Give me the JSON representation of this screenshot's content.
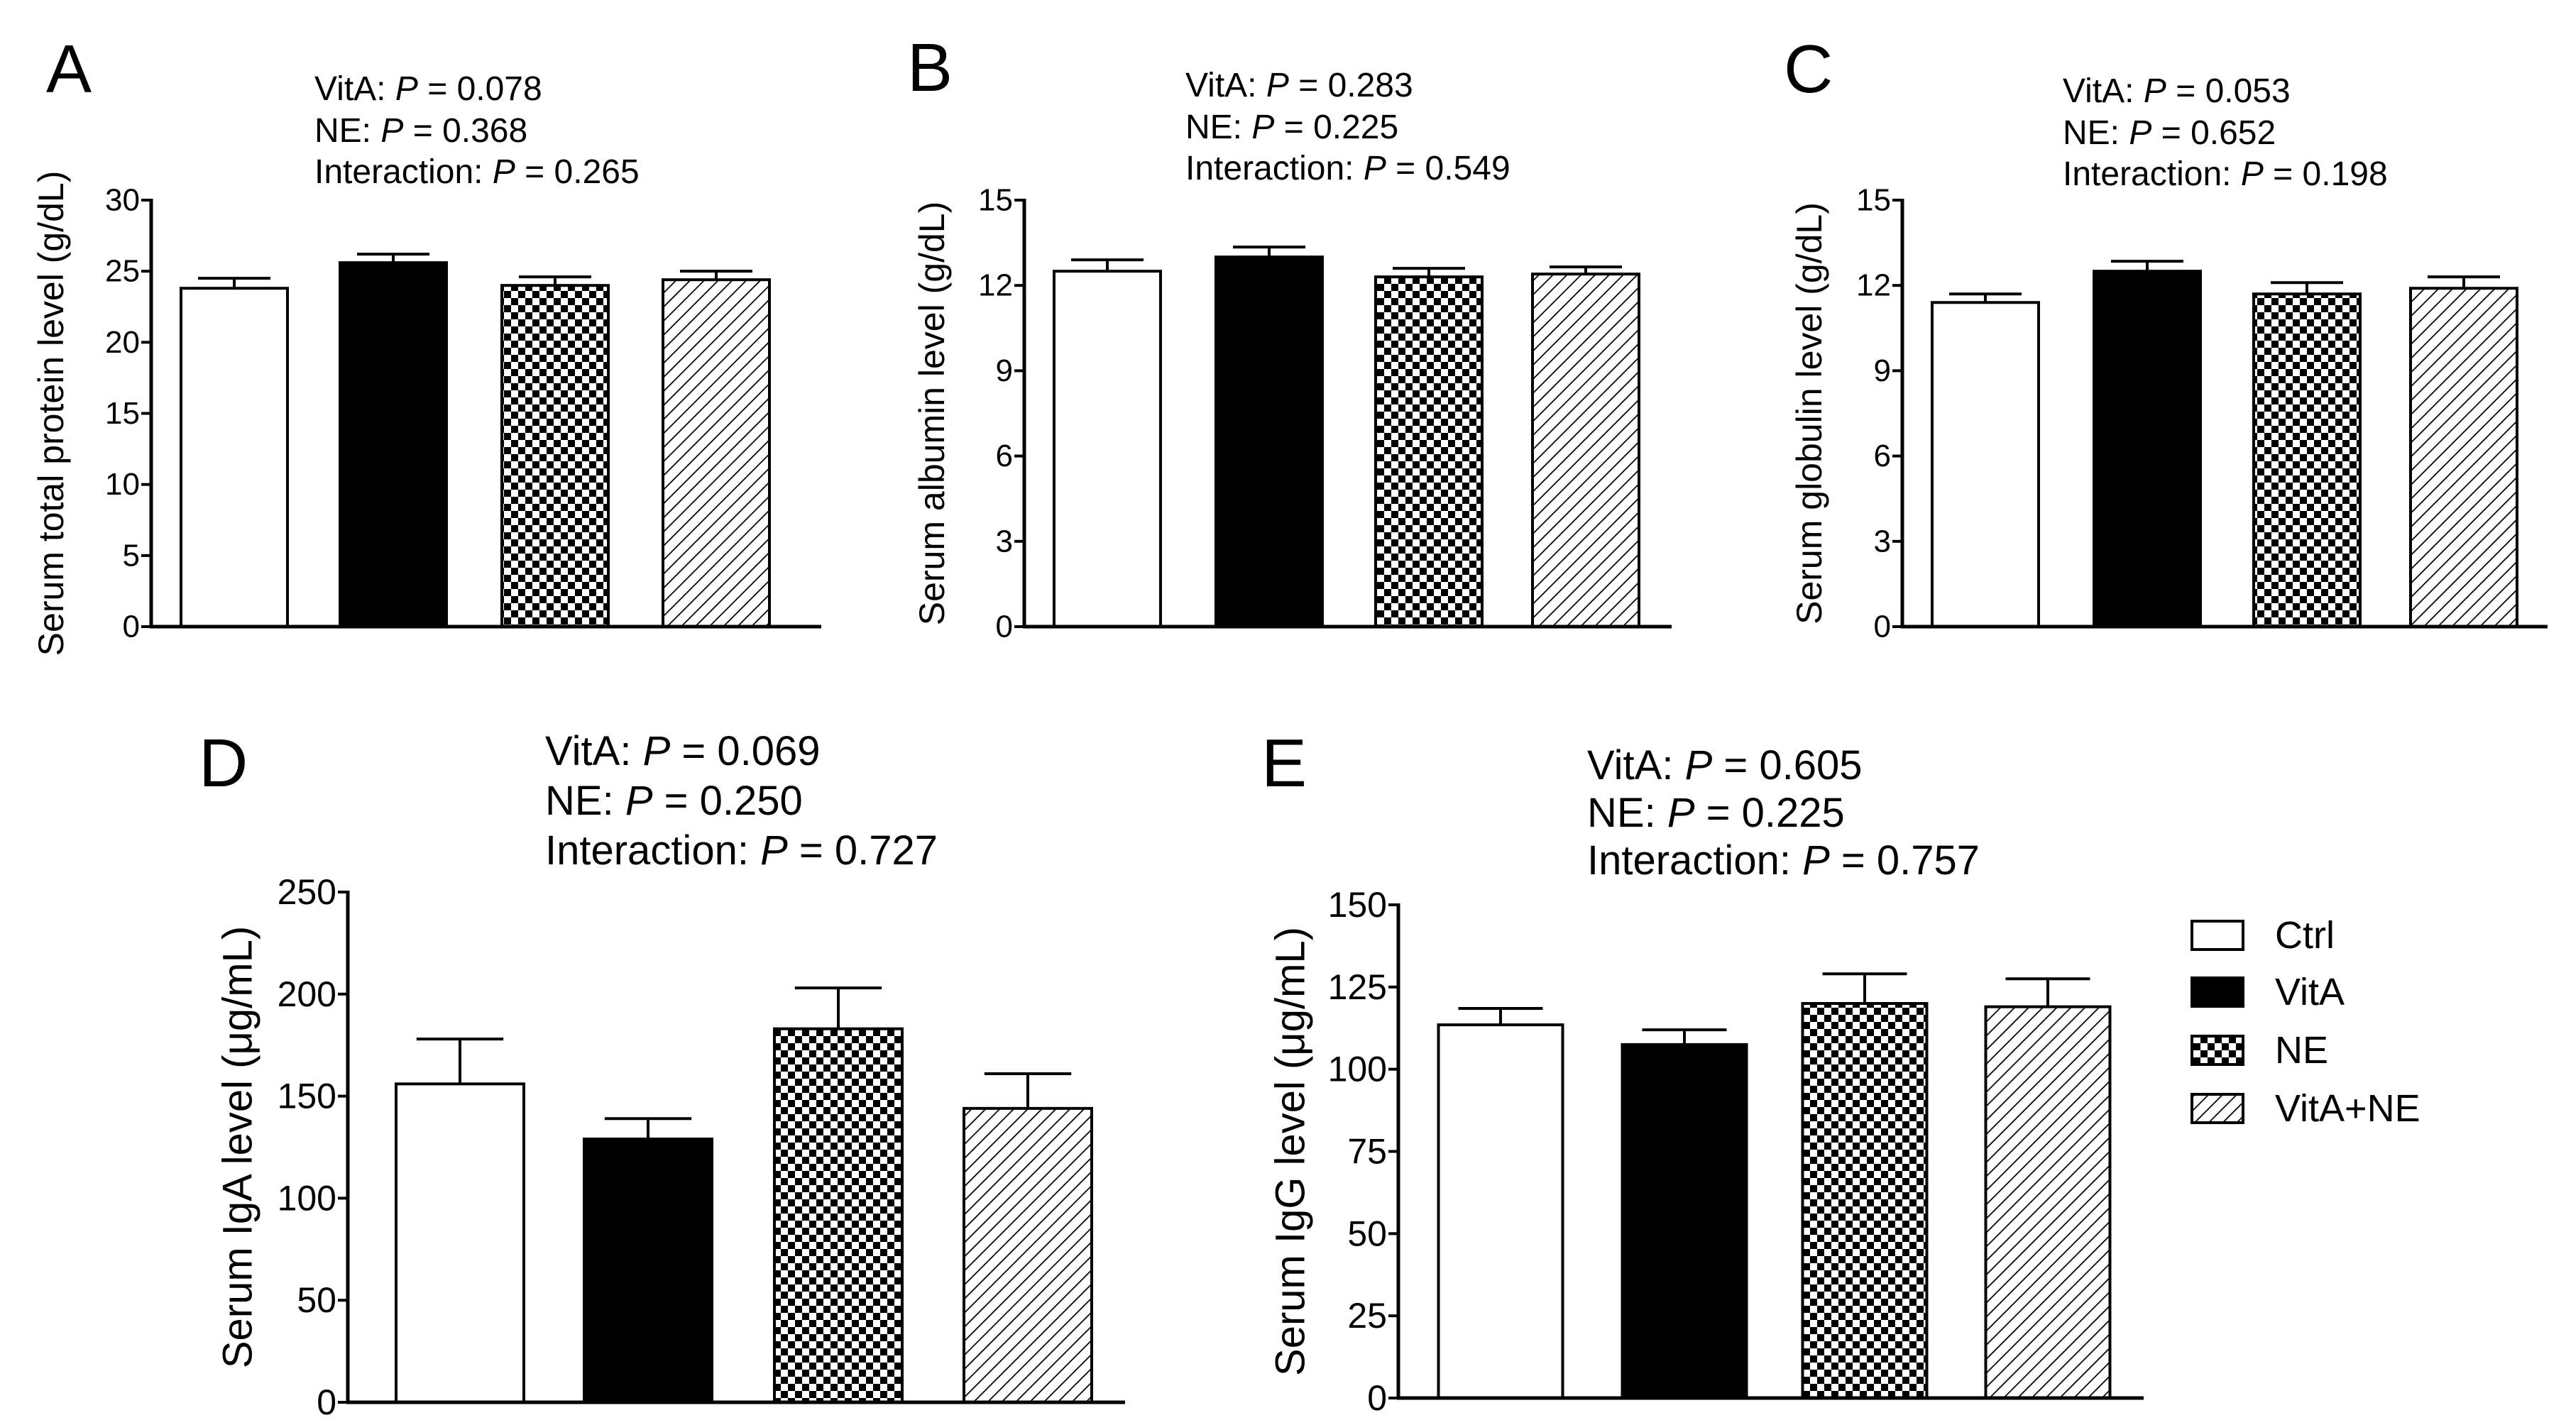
{
  "figure": {
    "legend": {
      "items": [
        {
          "label": "Ctrl",
          "pattern": "white"
        },
        {
          "label": "VitA",
          "pattern": "black"
        },
        {
          "label": "NE",
          "pattern": "checker"
        },
        {
          "label": "VitA+NE",
          "pattern": "hatch"
        }
      ]
    },
    "colors": {
      "bar_stroke": "#000000",
      "black_fill": "#000000",
      "white_fill": "#ffffff"
    }
  },
  "chart_data": [
    {
      "panel": "A",
      "type": "bar",
      "categories": [
        "Ctrl",
        "VitA",
        "NE",
        "VitA+NE"
      ],
      "values": [
        23.8,
        25.6,
        24.0,
        24.4
      ],
      "errors": [
        0.7,
        0.6,
        0.6,
        0.6
      ],
      "ylabel": "Serum total protein level (g/dL)",
      "ylim": [
        0,
        30
      ],
      "yticks": [
        0,
        5,
        10,
        15,
        20,
        25,
        30
      ],
      "stats": [
        {
          "prefix": "VitA: ",
          "p": "P",
          "value": " = 0.078"
        },
        {
          "prefix": "NE: ",
          "p": "P",
          "value": " = 0.368"
        },
        {
          "prefix": "Interaction: ",
          "p": "P",
          "value": " = 0.265"
        }
      ]
    },
    {
      "panel": "B",
      "type": "bar",
      "categories": [
        "Ctrl",
        "VitA",
        "NE",
        "VitA+NE"
      ],
      "values": [
        12.5,
        13.0,
        12.3,
        12.4
      ],
      "errors": [
        0.4,
        0.35,
        0.3,
        0.25
      ],
      "ylabel": "Serum albumin level (g/dL)",
      "ylim": [
        0,
        15
      ],
      "yticks": [
        0,
        3,
        6,
        9,
        12,
        15
      ],
      "stats": [
        {
          "prefix": "VitA: ",
          "p": "P",
          "value": " = 0.283"
        },
        {
          "prefix": "NE: ",
          "p": "P",
          "value": " = 0.225"
        },
        {
          "prefix": "Interaction: ",
          "p": "P",
          "value": " = 0.549"
        }
      ]
    },
    {
      "panel": "C",
      "type": "bar",
      "categories": [
        "Ctrl",
        "VitA",
        "NE",
        "VitA+NE"
      ],
      "values": [
        11.4,
        12.5,
        11.7,
        11.9
      ],
      "errors": [
        0.3,
        0.35,
        0.4,
        0.4
      ],
      "ylabel": "Serum globulin level (g/dL)",
      "ylim": [
        0,
        15
      ],
      "yticks": [
        0,
        3,
        6,
        9,
        12,
        15
      ],
      "stats": [
        {
          "prefix": "VitA: ",
          "p": "P",
          "value": " = 0.053"
        },
        {
          "prefix": "NE: ",
          "p": "P",
          "value": " = 0.652"
        },
        {
          "prefix": "Interaction: ",
          "p": "P",
          "value": " = 0.198"
        }
      ]
    },
    {
      "panel": "D",
      "type": "bar",
      "categories": [
        "Ctrl",
        "VitA",
        "NE",
        "VitA+NE"
      ],
      "values": [
        156,
        129,
        183,
        144
      ],
      "errors": [
        22,
        10,
        20,
        17
      ],
      "ylabel": "Serum IgA level (μg/mL)",
      "ylim": [
        0,
        250
      ],
      "yticks": [
        0,
        50,
        100,
        150,
        200,
        250
      ],
      "stats": [
        {
          "prefix": "VitA: ",
          "p": "P",
          "value": " = 0.069"
        },
        {
          "prefix": "NE: ",
          "p": "P",
          "value": " = 0.250"
        },
        {
          "prefix": "Interaction: ",
          "p": "P",
          "value": " = 0.727"
        }
      ]
    },
    {
      "panel": "E",
      "type": "bar",
      "categories": [
        "Ctrl",
        "VitA",
        "NE",
        "VitA+NE"
      ],
      "values": [
        113.5,
        107.5,
        120,
        119
      ],
      "errors": [
        5,
        4.5,
        9,
        8.5
      ],
      "ylabel": "Serum IgG level (μg/mL)",
      "ylim": [
        0,
        150
      ],
      "yticks": [
        0,
        25,
        50,
        75,
        100,
        125,
        150
      ],
      "stats": [
        {
          "prefix": "VitA: ",
          "p": "P",
          "value": " = 0.605"
        },
        {
          "prefix": "NE: ",
          "p": "P",
          "value": " = 0.225"
        },
        {
          "prefix": "Interaction: ",
          "p": "P",
          "value": " = 0.757"
        }
      ]
    }
  ]
}
